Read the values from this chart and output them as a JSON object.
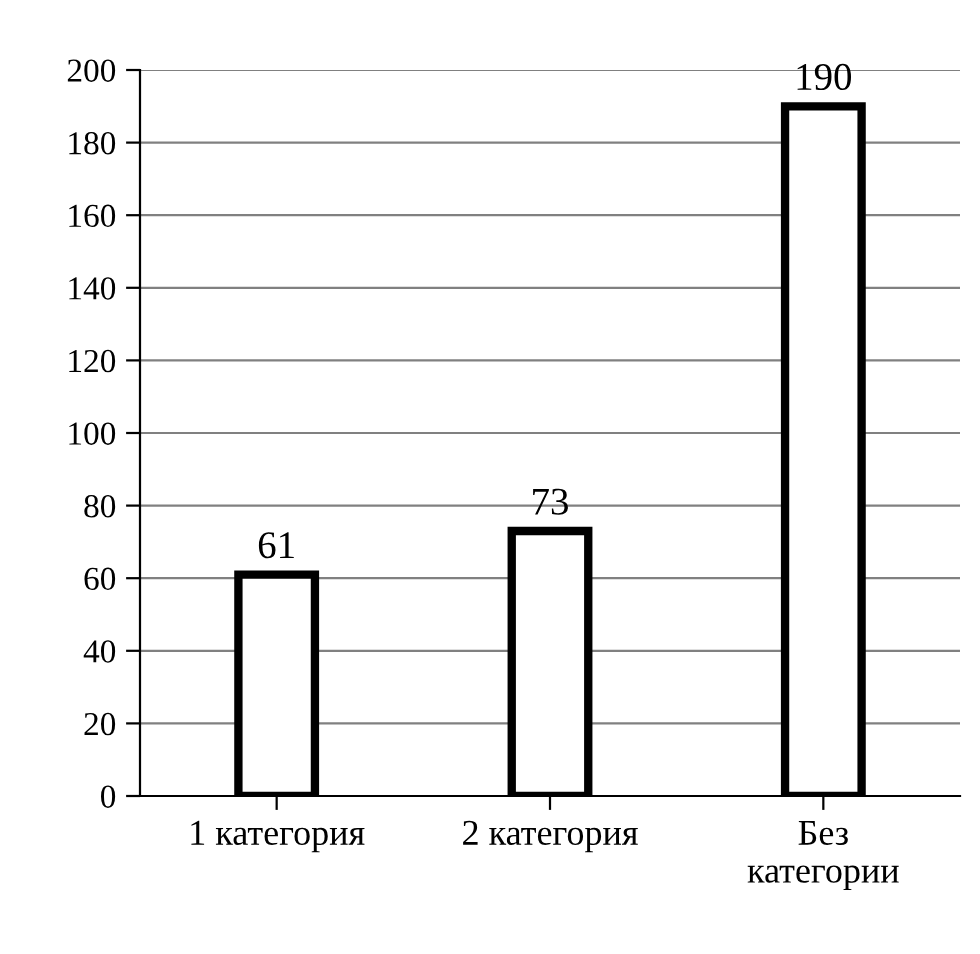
{
  "chart_data": {
    "type": "bar",
    "categories": [
      "1 категория",
      "2 категория",
      "Без\nкатегории"
    ],
    "values": [
      61,
      73,
      190
    ],
    "color": "#ffffff",
    "ylim": [
      0,
      200
    ],
    "yticks": [
      0,
      20,
      40,
      60,
      80,
      100,
      120,
      140,
      160,
      180,
      200
    ],
    "grid": "y",
    "data_labels": true
  }
}
